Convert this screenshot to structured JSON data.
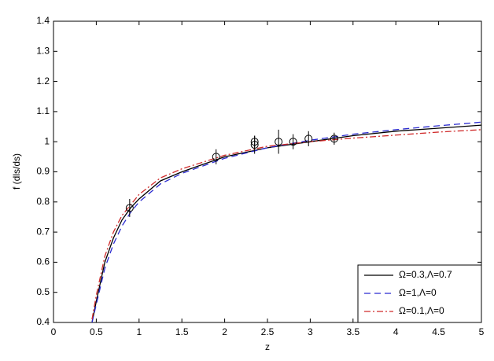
{
  "chart_data": {
    "type": "line",
    "xlabel": "z",
    "ylabel": "f (dls/ds)",
    "xlim": [
      0,
      5
    ],
    "xticks": [
      0,
      0.5,
      1,
      1.5,
      2,
      2.5,
      3,
      3.5,
      4,
      4.5,
      5
    ],
    "ylim": [
      0.4,
      1.4
    ],
    "yticks": [
      0.4,
      0.5,
      0.6,
      0.7,
      0.8,
      0.9,
      1,
      1.1,
      1.2,
      1.3,
      1.4
    ],
    "legend": "lower right",
    "x": [
      0.45,
      0.5,
      0.6,
      0.7,
      0.8,
      0.9,
      1,
      1.25,
      1.5,
      2,
      2.5,
      3,
      3.5,
      4,
      4.5,
      5
    ],
    "series": [
      {
        "name": "Ω=0.3,Λ=0.7",
        "color": "#000000",
        "dash": "solid",
        "values": [
          0.4,
          0.47,
          0.6,
          0.68,
          0.74,
          0.78,
          0.81,
          0.87,
          0.9,
          0.95,
          0.98,
          1.0,
          1.02,
          1.035,
          1.045,
          1.055
        ]
      },
      {
        "name": "Ω=1,Λ=0",
        "color": "#2b2bd0",
        "dash": "dashed",
        "values": [
          0.4,
          0.46,
          0.58,
          0.66,
          0.72,
          0.765,
          0.8,
          0.86,
          0.895,
          0.945,
          0.98,
          1.005,
          1.025,
          1.04,
          1.053,
          1.065
        ]
      },
      {
        "name": "Ω=0.1,Λ=0",
        "color": "#d02b2b",
        "dash": "dashdot",
        "values": [
          0.41,
          0.49,
          0.62,
          0.7,
          0.755,
          0.79,
          0.825,
          0.88,
          0.91,
          0.955,
          0.985,
          1.0,
          1.012,
          1.022,
          1.032,
          1.04
        ]
      }
    ],
    "points": {
      "color": "#000000",
      "x": [
        0.89,
        1.9,
        2.35,
        2.35,
        2.63,
        2.8,
        2.98,
        3.28
      ],
      "values": [
        0.78,
        0.95,
        1.0,
        0.99,
        1.0,
        1.0,
        1.01,
        1.01
      ],
      "errors": [
        0.03,
        0.025,
        0.02,
        0.03,
        0.04,
        0.025,
        0.025,
        0.02
      ]
    }
  }
}
